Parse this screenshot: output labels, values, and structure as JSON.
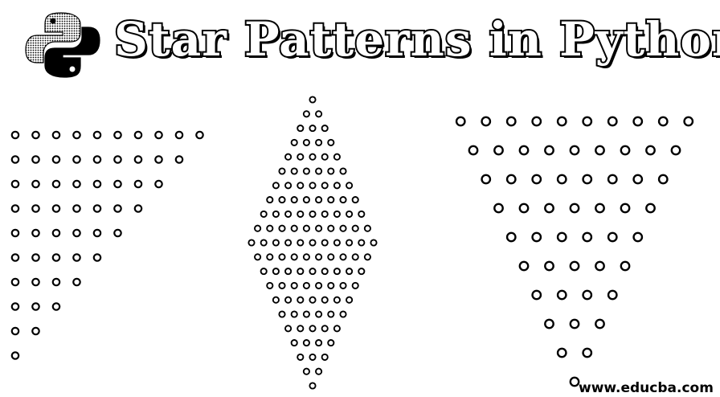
{
  "header": {
    "title": "Star Patterns in Python",
    "logo_icon": "python-logo-icon"
  },
  "patterns": [
    {
      "name": "right-triangle-pattern",
      "type": "descending-left-aligned",
      "rows": [
        10,
        9,
        8,
        7,
        6,
        5,
        4,
        3,
        2,
        1
      ]
    },
    {
      "name": "diamond-pattern",
      "type": "centered-diamond",
      "rows": [
        1,
        2,
        3,
        4,
        5,
        6,
        7,
        8,
        9,
        10,
        11,
        10,
        9,
        8,
        7,
        6,
        5,
        4,
        3,
        2,
        1
      ]
    },
    {
      "name": "inverted-pyramid-pattern",
      "type": "centered-descending",
      "rows": [
        10,
        9,
        8,
        7,
        6,
        5,
        4,
        3,
        2,
        1
      ]
    }
  ],
  "footer": {
    "watermark": "www.educba.com"
  },
  "colors": {
    "background": "#ffffff",
    "foreground": "#000000"
  }
}
